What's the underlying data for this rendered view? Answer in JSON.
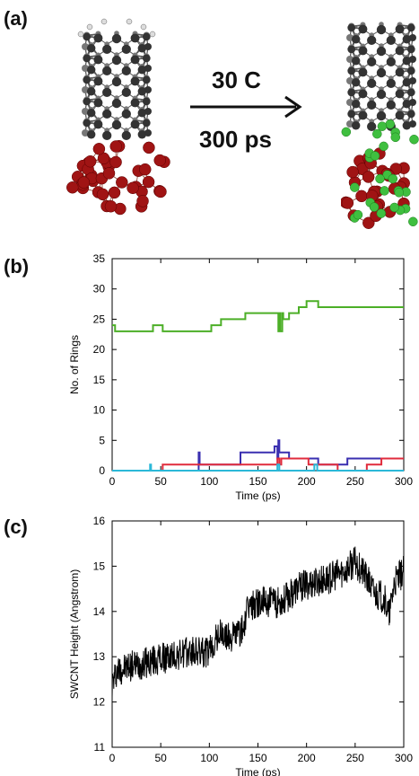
{
  "panel_a": {
    "label": "(a)",
    "arrow_top": "30 C",
    "arrow_bottom": "300 ps"
  },
  "panel_b": {
    "label": "(b)"
  },
  "panel_c": {
    "label": "(c)"
  },
  "chart_data": [
    {
      "type": "line",
      "title": "",
      "xlabel": "Time (ps)",
      "ylabel": "No. of Rings",
      "xlim": [
        0,
        300
      ],
      "ylim": [
        0,
        35
      ],
      "xticks": [
        0,
        50,
        100,
        150,
        200,
        250,
        300
      ],
      "yticks": [
        0,
        5,
        10,
        15,
        20,
        25,
        30,
        35
      ],
      "series": [
        {
          "color": "#4caf27",
          "x": [
            0,
            2,
            3,
            40,
            42,
            50,
            52,
            100,
            102,
            110,
            112,
            135,
            137,
            170,
            171,
            172,
            173,
            175,
            176,
            180,
            182,
            190,
            192,
            198,
            200,
            210,
            212,
            215,
            217,
            300
          ],
          "y": [
            24,
            24,
            23,
            23,
            24,
            24,
            23,
            23,
            24,
            24,
            25,
            25,
            26,
            26,
            23,
            26,
            23,
            26,
            25,
            25,
            26,
            26,
            27,
            27,
            28,
            28,
            27,
            27,
            27,
            27
          ]
        },
        {
          "color": "#3a2fb0",
          "x": [
            0,
            88,
            89,
            90,
            130,
            132,
            165,
            167,
            170,
            171,
            172,
            180,
            182,
            210,
            212,
            240,
            242,
            300
          ],
          "y": [
            0,
            0,
            3,
            1,
            1,
            3,
            3,
            4,
            2,
            5,
            3,
            3,
            2,
            2,
            1,
            1,
            2,
            2
          ]
        },
        {
          "color": "#e02b3c",
          "x": [
            0,
            50,
            52,
            110,
            112,
            168,
            170,
            172,
            174,
            200,
            202,
            230,
            232,
            260,
            262,
            275,
            277,
            300
          ],
          "y": [
            0,
            0,
            1,
            1,
            1,
            1,
            2,
            1,
            2,
            2,
            1,
            1,
            0,
            0,
            1,
            1,
            2,
            2
          ]
        },
        {
          "color": "#2bb8d8",
          "x": [
            0,
            38,
            39,
            40,
            41,
            169,
            170,
            171,
            172,
            207,
            208,
            210,
            211,
            300
          ],
          "y": [
            0,
            0,
            1,
            0,
            0,
            0,
            1,
            1,
            0,
            0,
            1,
            1,
            0,
            0
          ]
        }
      ]
    },
    {
      "type": "line",
      "title": "",
      "xlabel": "Time (ps)",
      "ylabel": "SWCNT Height (Angstrom)",
      "xlim": [
        0,
        300
      ],
      "ylim": [
        11,
        16
      ],
      "xticks": [
        0,
        50,
        100,
        150,
        200,
        250,
        300
      ],
      "yticks": [
        11,
        12,
        13,
        14,
        15,
        16
      ],
      "series": [
        {
          "color": "#000000",
          "trend_x": [
            0,
            5,
            20,
            40,
            60,
            80,
            100,
            110,
            120,
            135,
            140,
            150,
            170,
            180,
            190,
            200,
            220,
            240,
            250,
            260,
            270,
            280,
            285,
            290,
            300
          ],
          "trend_y": [
            12.4,
            12.7,
            12.8,
            12.9,
            13.0,
            13.1,
            13.1,
            13.5,
            13.4,
            13.6,
            14.1,
            14.2,
            14.2,
            14.3,
            14.5,
            14.6,
            14.7,
            14.9,
            15.1,
            14.8,
            14.4,
            14.3,
            13.9,
            14.6,
            14.9
          ]
        }
      ]
    }
  ]
}
